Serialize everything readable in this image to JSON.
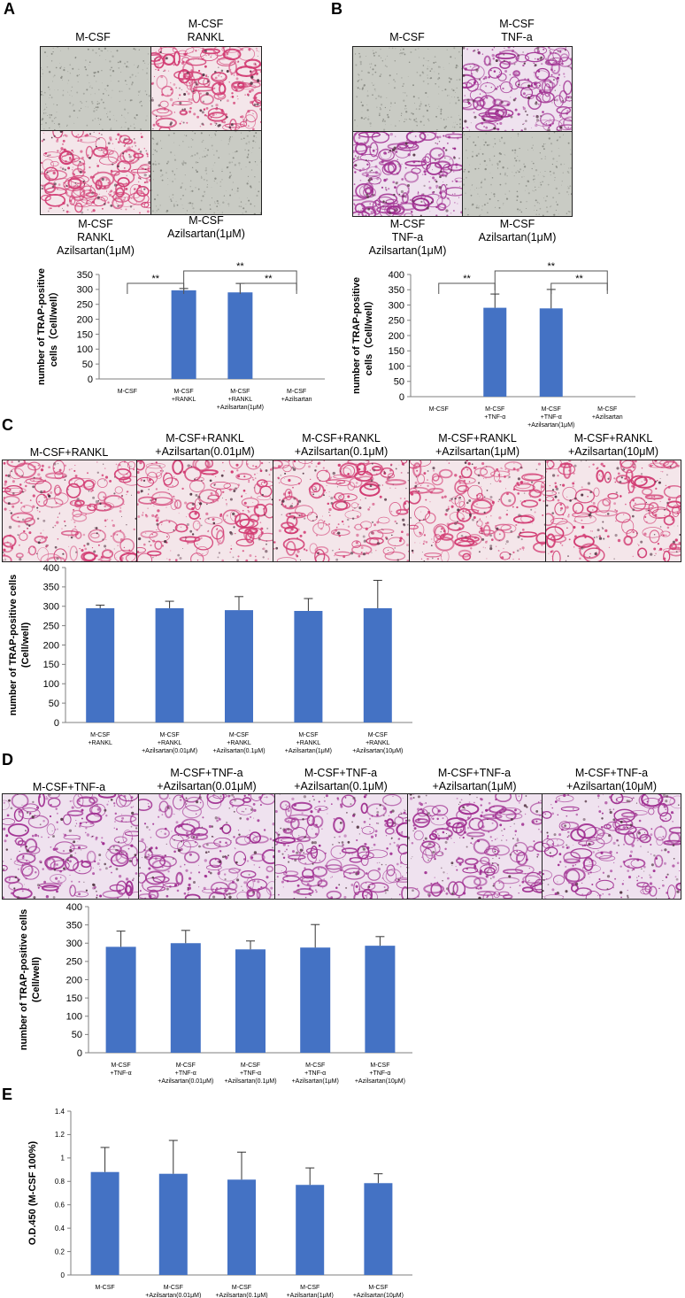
{
  "panels": {
    "A": {
      "letter": "A",
      "images": [
        {
          "label": "M-CSF",
          "stain": "none"
        },
        {
          "label": "M-CSF\nRANKL",
          "stain": "red"
        },
        {
          "label": "M-CSF\nRANKL\nAzilsartan(1μM)",
          "stain": "red"
        },
        {
          "label": "M-CSF\nAzilsartan(1μM)",
          "stain": "none"
        }
      ]
    },
    "B": {
      "letter": "B",
      "images": [
        {
          "label": "M-CSF",
          "stain": "none"
        },
        {
          "label": "M-CSF\nTNF-a",
          "stain": "purple"
        },
        {
          "label": "M-CSF\nTNF-a\nAzilsartan(1μM)",
          "stain": "purple"
        },
        {
          "label": "M-CSF\nAzilsartan(1μM)",
          "stain": "none"
        }
      ]
    },
    "C": {
      "letter": "C",
      "images": [
        {
          "label": "M-CSF+RANKL",
          "stain": "red"
        },
        {
          "label": "M-CSF+RANKL\n+Azilsartan(0.01μM)",
          "stain": "red"
        },
        {
          "label": "M-CSF+RANKL\n+Azilsartan(0.1μM)",
          "stain": "red"
        },
        {
          "label": "M-CSF+RANKL\n+Azilsartan(1μM)",
          "stain": "red"
        },
        {
          "label": "M-CSF+RANKL\n+Azilsartan(10μM)",
          "stain": "red"
        }
      ]
    },
    "D": {
      "letter": "D",
      "images": [
        {
          "label": "M-CSF+TNF-a",
          "stain": "purple"
        },
        {
          "label": "M-CSF+TNF-a\n+Azilsartan(0.01μM)",
          "stain": "purple"
        },
        {
          "label": "M-CSF+TNF-a\n+Azilsartan(0.1μM)",
          "stain": "purple"
        },
        {
          "label": "M-CSF+TNF-a\n+Azilsartan(1μM)",
          "stain": "purple"
        },
        {
          "label": "M-CSF+TNF-a\n+Azilsartan(10μM)",
          "stain": "purple"
        }
      ]
    },
    "E": {
      "letter": "E"
    }
  },
  "colors": {
    "bar": "#4472C4",
    "red_stain": "#d23c73",
    "purple_stain": "#a02f91",
    "gray_field": "#c9cbc4"
  },
  "chart_data": [
    {
      "id": "A",
      "type": "bar",
      "categories": [
        "M-CSF",
        "M-CSF\n+RANKL",
        "M-CSF\n+RANKL\n+Azilsartan(1μM)",
        "M-CSF\n+Azilsartan"
      ],
      "values": [
        0,
        297,
        290,
        0
      ],
      "errors": [
        0,
        6,
        30,
        0
      ],
      "ylabel": "number of TRAP-positive\ncells（Cell/well）",
      "ylim": [
        0,
        350
      ],
      "yticks": [
        0,
        50,
        100,
        150,
        200,
        250,
        300,
        350
      ],
      "significance": [
        {
          "from": 0,
          "to": 1,
          "label": "**",
          "level": 1
        },
        {
          "from": 1,
          "to": 3,
          "label": "**",
          "level": 2
        },
        {
          "from": 2,
          "to": 3,
          "label": "**",
          "level": 1
        }
      ]
    },
    {
      "id": "B",
      "type": "bar",
      "categories": [
        "M-CSF",
        "M-CSF\n+TNF-α",
        "M-CSF\n+TNF-α\n+Azilsartan(1μM)",
        "M-CSF\n+Azilsartan"
      ],
      "values": [
        0,
        291,
        289,
        0
      ],
      "errors": [
        0,
        45,
        62,
        0
      ],
      "ylabel": "number of TRAP-positive\ncells（Cell/well）",
      "ylim": [
        0,
        400
      ],
      "yticks": [
        0,
        50,
        100,
        150,
        200,
        250,
        300,
        350,
        400
      ],
      "significance": [
        {
          "from": 0,
          "to": 1,
          "label": "**",
          "level": 1
        },
        {
          "from": 1,
          "to": 3,
          "label": "**",
          "level": 2
        },
        {
          "from": 2,
          "to": 3,
          "label": "**",
          "level": 1
        }
      ]
    },
    {
      "id": "C",
      "type": "bar",
      "categories": [
        "M-CSF\n+RANKL",
        "M-CSF\n+RANKL\n+Azilsartan(0.01μM)",
        "M-CSF\n+RANKL\n+Azilsartan(0.1μM)",
        "M-CSF\n+RANKL\n+Azilsartan(1μM)",
        "M-CSF\n+RANKL\n+Azilsartan(10μM)"
      ],
      "values": [
        295,
        295,
        290,
        288,
        295
      ],
      "errors": [
        8,
        18,
        35,
        32,
        72
      ],
      "ylabel": "number of TRAP-positive cells\n(Cell/well)",
      "ylim": [
        0,
        400
      ],
      "yticks": [
        0,
        50,
        100,
        150,
        200,
        250,
        300,
        350,
        400
      ]
    },
    {
      "id": "D",
      "type": "bar",
      "categories": [
        "M-CSF\n+TNF-α",
        "M-CSF\n+TNF-α\n+Azilsartan(0.01μM)",
        "M-CSF\n+TNF-α\n+Azilsartan(0.1μM)",
        "M-CSF\n+TNF-α\n+Azilsartan(1μM)",
        "M-CSF\n+TNF-α\n+Azilsartan(10μM)"
      ],
      "values": [
        290,
        300,
        283,
        288,
        293
      ],
      "errors": [
        43,
        35,
        23,
        63,
        25
      ],
      "ylabel": "number of TRAP-positive cells\n(Cell/well)",
      "ylim": [
        0,
        400
      ],
      "yticks": [
        0,
        50,
        100,
        150,
        200,
        250,
        300,
        350,
        400
      ]
    },
    {
      "id": "E",
      "type": "bar",
      "categories": [
        "M-CSF",
        "M-CSF\n+Azilsartan(0.01μM)",
        "M-CSF\n+Azilsartan(0.1μM)",
        "M-CSF\n+Azilsartan(1μM)",
        "M-CSF\n+Azilsartan(10μM)"
      ],
      "values": [
        0.88,
        0.865,
        0.815,
        0.77,
        0.785
      ],
      "errors": [
        0.21,
        0.285,
        0.235,
        0.145,
        0.08
      ],
      "ylabel": "O.D.450 (M-CSF 100%)",
      "ylim": [
        0,
        1.4
      ],
      "yticks": [
        "0",
        "0.2",
        "0.4",
        "0.6",
        "0.8",
        "1",
        "1.2",
        "1.4"
      ]
    }
  ]
}
